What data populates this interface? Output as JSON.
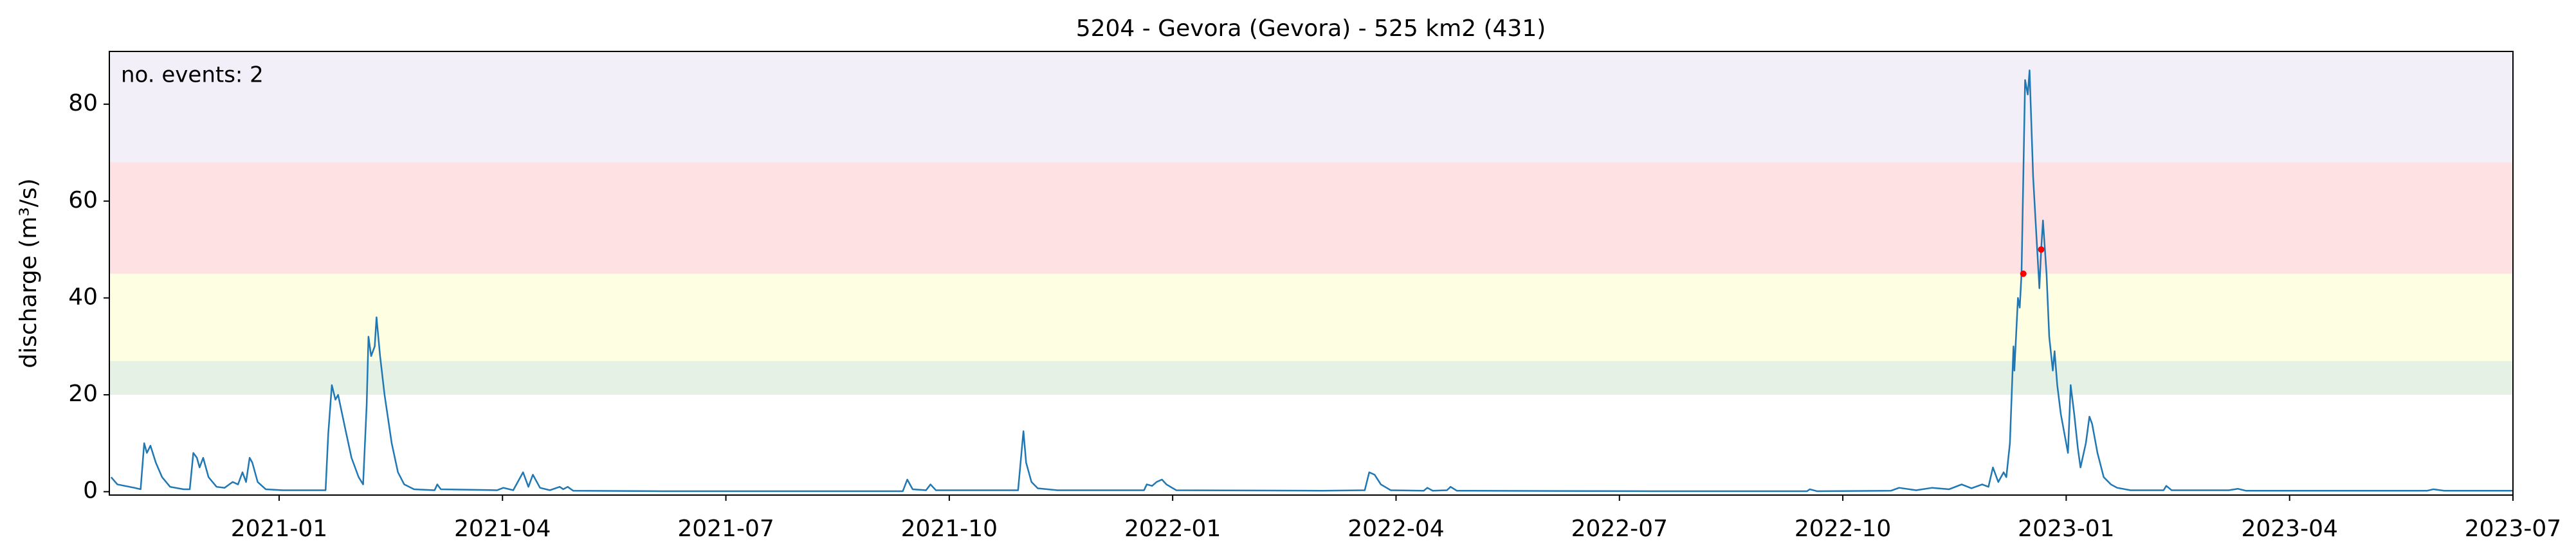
{
  "chart_data": {
    "type": "line",
    "title": "5204 - Gevora (Gevora) - 525 km2 (431)",
    "ylabel": "discharge (m³/s)",
    "annotation": "no. events: 2",
    "annotation_color": "#d62728",
    "color": "#1f77b4",
    "x": [
      2020.812,
      2020.819,
      2020.838,
      2020.845,
      2020.849,
      2020.852,
      2020.856,
      2020.862,
      2020.869,
      2020.878,
      2020.893,
      2020.9,
      2020.904,
      2020.908,
      2020.911,
      2020.915,
      2020.921,
      2020.93,
      2020.939,
      2020.948,
      2020.954,
      2020.959,
      2020.963,
      2020.967,
      2020.97,
      2020.976,
      2020.985,
      2021.004,
      2021.052,
      2021.055,
      2021.059,
      2021.063,
      2021.066,
      2021.074,
      2021.081,
      2021.089,
      2021.094,
      2021.098,
      2021.1,
      2021.103,
      2021.107,
      2021.109,
      2021.113,
      2021.118,
      2021.126,
      2021.133,
      2021.14,
      2021.151,
      2021.174,
      2021.177,
      2021.181,
      2021.244,
      2021.251,
      2021.262,
      2021.273,
      2021.279,
      2021.284,
      2021.292,
      2021.303,
      2021.314,
      2021.318,
      2021.323,
      2021.329,
      2021.428,
      2021.698,
      2021.703,
      2021.709,
      2021.724,
      2021.729,
      2021.735,
      2021.827,
      2021.833,
      2021.836,
      2021.842,
      2021.849,
      2021.871,
      2021.968,
      2021.971,
      2021.977,
      2021.982,
      2021.988,
      2021.993,
      2022.004,
      2022.167,
      2022.215,
      2022.22,
      2022.226,
      2022.233,
      2022.244,
      2022.281,
      2022.285,
      2022.291,
      2022.307,
      2022.311,
      2022.318,
      2022.536,
      2022.71,
      2022.713,
      2022.721,
      2022.804,
      2022.813,
      2022.832,
      2022.85,
      2022.869,
      2022.883,
      2022.894,
      2022.906,
      2022.913,
      2022.918,
      2022.924,
      2022.93,
      2022.933,
      2022.937,
      2022.941,
      2022.942,
      2022.946,
      2022.948,
      2022.95,
      2022.954,
      2022.957,
      2022.959,
      2022.963,
      2022.966,
      2022.97,
      2022.972,
      2022.974,
      2022.978,
      2022.981,
      2022.985,
      2022.987,
      2022.99,
      2022.994,
      2022.998,
      2023.002,
      2023.005,
      2023.009,
      2023.013,
      2023.016,
      2023.022,
      2023.026,
      2023.029,
      2023.035,
      2023.042,
      2023.05,
      2023.057,
      2023.072,
      2023.109,
      2023.112,
      2023.118,
      2023.182,
      2023.192,
      2023.201,
      2023.404,
      2023.411,
      2023.423,
      2023.5
    ],
    "values": [
      3,
      1.5,
      0.8,
      0.5,
      10,
      8,
      9.5,
      6,
      3,
      1,
      0.5,
      0.5,
      8,
      7,
      5,
      7,
      3,
      1,
      0.8,
      2,
      1.5,
      4,
      2,
      7,
      6,
      2,
      0.5,
      0.3,
      0.3,
      12,
      22,
      19,
      20,
      13,
      7,
      3,
      1.5,
      18,
      32,
      28,
      30,
      36,
      28,
      20,
      10,
      4,
      1.5,
      0.5,
      0.3,
      1.5,
      0.5,
      0.3,
      0.8,
      0.3,
      4,
      1,
      3.5,
      0.8,
      0.3,
      1,
      0.5,
      1,
      0.2,
      0.1,
      0.1,
      2.5,
      0.5,
      0.3,
      1.5,
      0.3,
      0.3,
      12.5,
      6,
      2,
      0.7,
      0.3,
      0.3,
      1.5,
      1.2,
      2,
      2.5,
      1.5,
      0.3,
      0.2,
      0.3,
      4,
      3.5,
      1.5,
      0.3,
      0.2,
      0.8,
      0.2,
      0.3,
      1,
      0.2,
      0.1,
      0.1,
      0.5,
      0.1,
      0.2,
      0.8,
      0.3,
      0.8,
      0.5,
      1.5,
      0.7,
      1.5,
      1,
      5,
      2,
      4,
      3,
      10,
      30,
      25,
      40,
      38,
      45,
      85,
      82,
      87,
      65,
      55,
      42,
      50,
      56,
      45,
      32,
      25,
      29,
      22,
      16,
      12,
      8,
      22,
      16,
      9,
      5,
      10,
      15.5,
      14,
      8,
      3,
      1.5,
      0.8,
      0.3,
      0.3,
      1.2,
      0.3,
      0.3,
      0.6,
      0.2,
      0.2,
      0.5,
      0.2,
      0.2
    ],
    "events": {
      "x": [
        2022.952,
        2022.972
      ],
      "values": [
        45,
        50
      ],
      "color": "#ff0000"
    },
    "bands": [
      {
        "from": 20,
        "to": 27,
        "color": "#e5f1e5"
      },
      {
        "from": 27,
        "to": 45,
        "color": "#fefee2"
      },
      {
        "from": 45,
        "to": 68,
        "color": "#fee2e3"
      },
      {
        "from": 68,
        "to": 90.9,
        "color": "#f2eff9"
      }
    ],
    "xlim": [
      2020.81,
      2023.5
    ],
    "ylim": [
      -0.7,
      90.9
    ],
    "xticks": [
      {
        "value": 2021.0,
        "label": "2021-01"
      },
      {
        "value": 2021.25,
        "label": "2021-04"
      },
      {
        "value": 2021.5,
        "label": "2021-07"
      },
      {
        "value": 2021.75,
        "label": "2021-10"
      },
      {
        "value": 2022.0,
        "label": "2022-01"
      },
      {
        "value": 2022.25,
        "label": "2022-04"
      },
      {
        "value": 2022.5,
        "label": "2022-07"
      },
      {
        "value": 2022.75,
        "label": "2022-10"
      },
      {
        "value": 2023.0,
        "label": "2023-01"
      },
      {
        "value": 2023.25,
        "label": "2023-04"
      },
      {
        "value": 2023.5,
        "label": "2023-07"
      }
    ],
    "yticks": [
      0,
      20,
      40,
      60,
      80
    ]
  }
}
